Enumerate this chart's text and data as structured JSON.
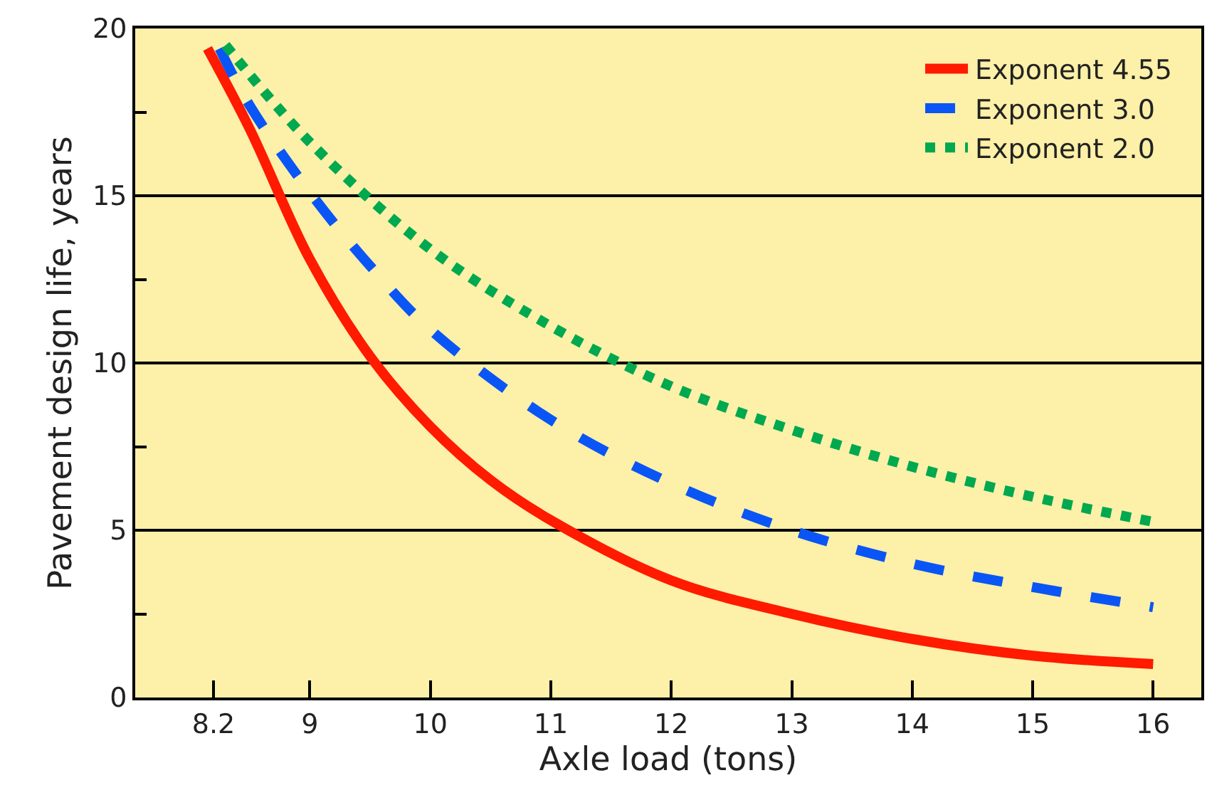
{
  "chart_data": {
    "type": "line",
    "xlabel": "Axle load (tons)",
    "ylabel": "Pavement design life, years",
    "xlim": [
      7.55,
      16.4
    ],
    "xticks": [
      8.2,
      9,
      10,
      11,
      12,
      13,
      14,
      15,
      16
    ],
    "ylim": [
      0,
      20
    ],
    "yticks": [
      0,
      {
        "value": 2.5,
        "label": null
      },
      5,
      {
        "value": 7.5,
        "label": null
      },
      10,
      {
        "value": 12.5,
        "label": null
      },
      15,
      {
        "value": 17.5,
        "label": null
      },
      20
    ],
    "grid": "y",
    "legend": "top right",
    "marker": "none",
    "series": [
      {
        "name": "Exponent 4.55",
        "color": "#ff1a00",
        "line_style": "solid",
        "x": [
          8.15,
          8.5,
          9,
          9.5,
          10,
          10.5,
          11,
          12,
          13,
          14,
          15,
          16
        ],
        "values": [
          19.4,
          17.0,
          13.1,
          10.2,
          8.1,
          6.5,
          5.3,
          3.5,
          2.5,
          1.75,
          1.25,
          1.0
        ]
      },
      {
        "name": "Exponent 3.0",
        "color": "#0a55f5",
        "line_style": "dashed",
        "x": [
          8.25,
          8.5,
          9,
          9.5,
          10,
          11,
          12,
          13,
          14,
          15,
          16
        ],
        "values": [
          19.4,
          17.7,
          15.1,
          12.9,
          11.0,
          8.3,
          6.4,
          5.0,
          4.0,
          3.3,
          2.7
        ]
      },
      {
        "name": "Exponent 2.0",
        "color": "#00a84f",
        "line_style": "dotted",
        "x": [
          8.3,
          9,
          10,
          11,
          12,
          13,
          14,
          15,
          16
        ],
        "values": [
          19.5,
          16.6,
          13.4,
          11.1,
          9.3,
          8.0,
          6.9,
          6.0,
          5.25
        ]
      }
    ]
  }
}
